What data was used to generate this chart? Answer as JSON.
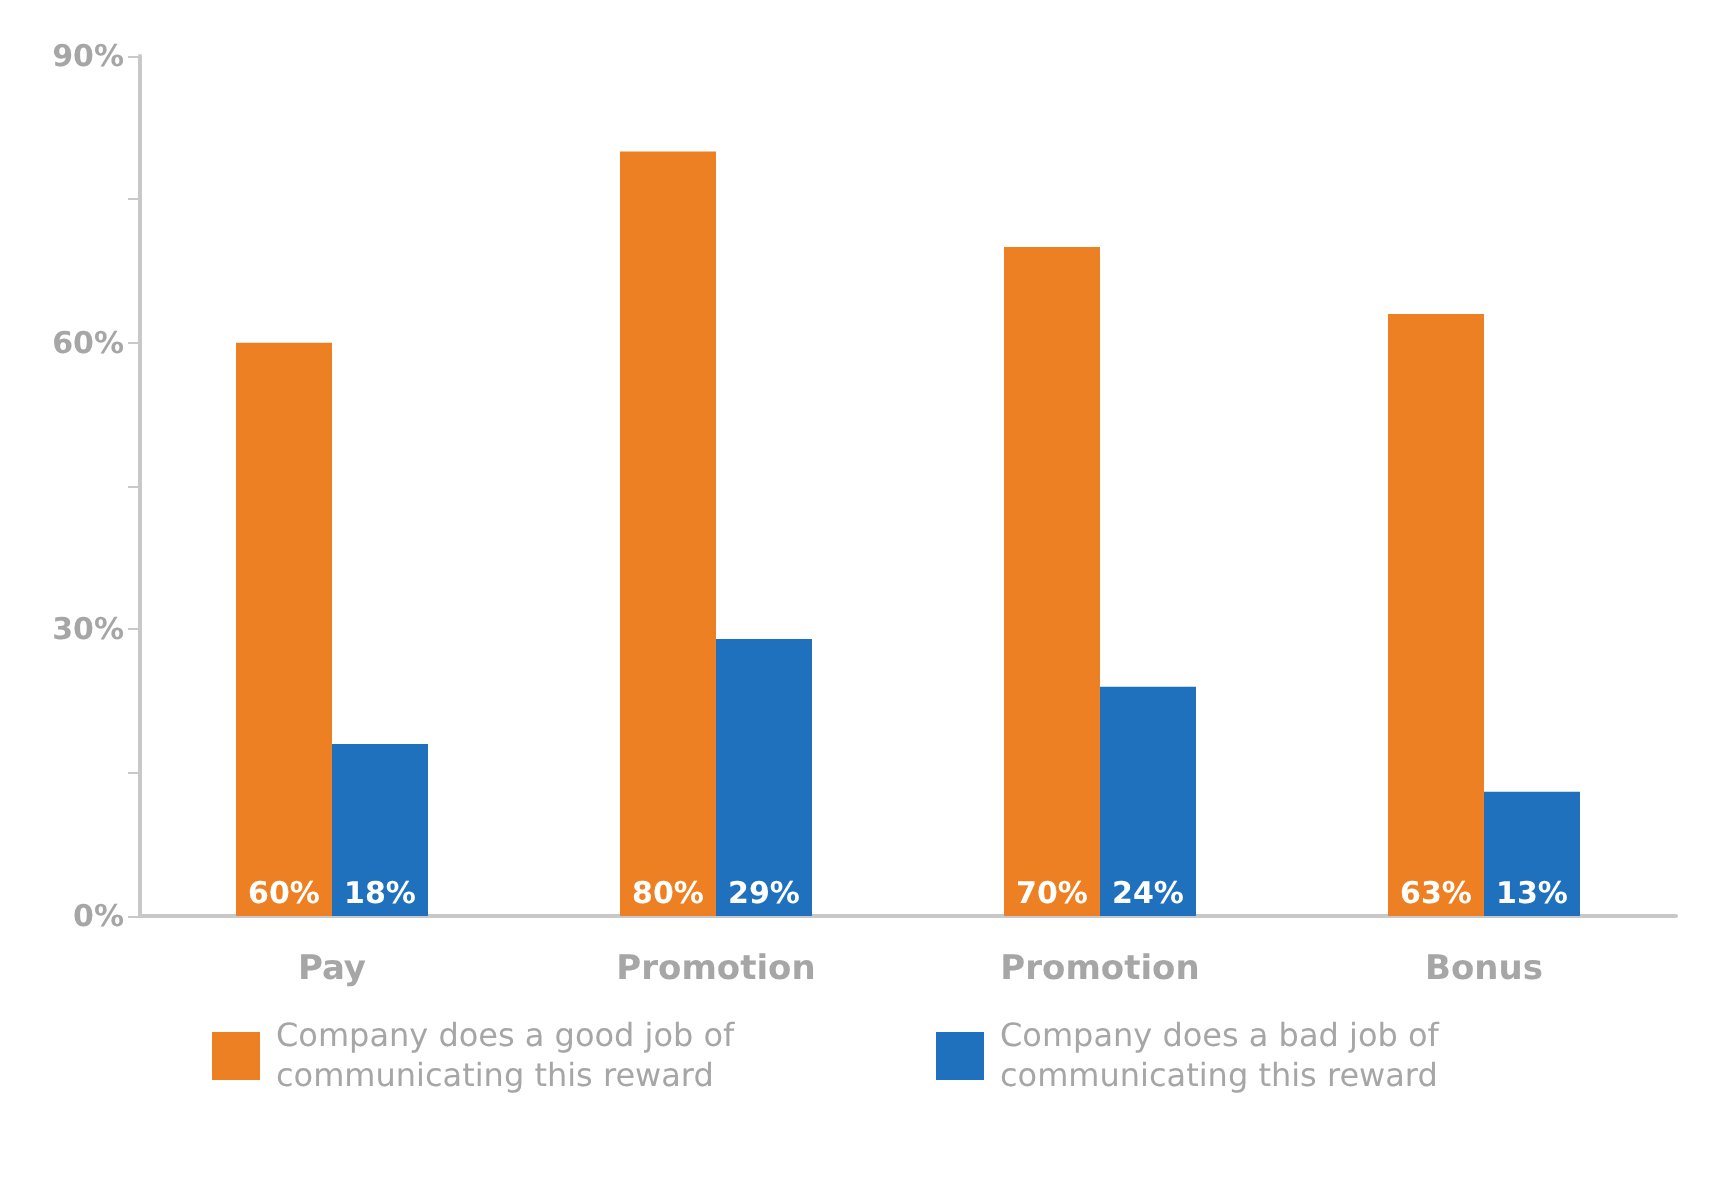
{
  "chart_data": {
    "type": "bar",
    "categories": [
      "Pay",
      "Promotion",
      "Promotion",
      "Bonus"
    ],
    "series": [
      {
        "name": "Company does a good job of communicating this reward",
        "color": "#ee8024",
        "values": [
          60,
          80,
          70,
          63
        ],
        "value_labels": [
          "60%",
          "80%",
          "70%",
          "63%"
        ]
      },
      {
        "name": "Company does a bad job of communicating this reward",
        "color": "#1f70bd",
        "values": [
          18,
          29,
          24,
          13
        ],
        "value_labels": [
          "18%",
          "29%",
          "24%",
          "13%"
        ]
      }
    ],
    "ylim": [
      0,
      90
    ],
    "yticks": [
      {
        "value": 0,
        "label": "0%"
      },
      {
        "value": 15,
        "label": null
      },
      {
        "value": 30,
        "label": "30%"
      },
      {
        "value": 45,
        "label": null
      },
      {
        "value": 60,
        "label": "60%"
      },
      {
        "value": 75,
        "label": null
      },
      {
        "value": 90,
        "label": "90%"
      }
    ],
    "grid": false,
    "legend": "bottom"
  }
}
